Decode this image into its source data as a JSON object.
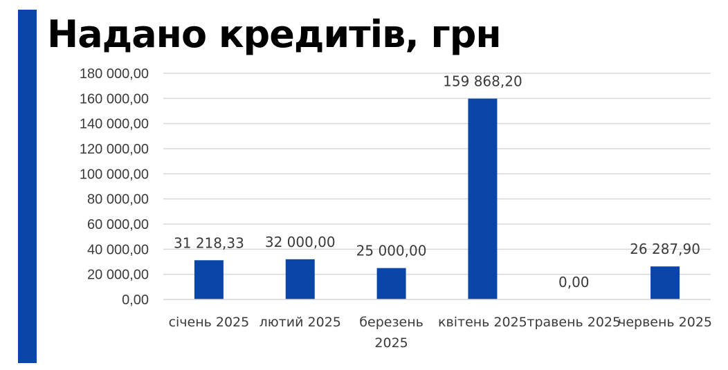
{
  "page": {
    "title": "Надано кредитів, грн"
  },
  "colors": {
    "accent": "#0a45a8",
    "bar": "#0a45a8",
    "grid": "#d9d9d9",
    "text": "#3a3a3a"
  },
  "chart_data": {
    "type": "bar",
    "title": "Надано кредитів, грн",
    "xlabel": "",
    "ylabel": "",
    "categories": [
      "січень 2025",
      "лютий 2025",
      "березень 2025",
      "квітень 2025",
      "травень 2025",
      "червень 2025"
    ],
    "values": [
      31218.33,
      32000.0,
      25000.0,
      159868.2,
      0.0,
      26287.9
    ],
    "data_labels": [
      "31 218,33",
      "32 000,00",
      "25 000,00",
      "159 868,20",
      "0,00",
      "26 287,90"
    ],
    "y_ticks": [
      0,
      20000,
      40000,
      60000,
      80000,
      100000,
      120000,
      140000,
      160000,
      180000
    ],
    "y_tick_labels": [
      "0,00",
      "20 000,00",
      "40 000,00",
      "60 000,00",
      "80 000,00",
      "100 000,00",
      "120 000,00",
      "140 000,00",
      "160 000,00",
      "180 000,00"
    ],
    "ylim": [
      0,
      180000
    ],
    "grid": true,
    "legend": "none"
  }
}
